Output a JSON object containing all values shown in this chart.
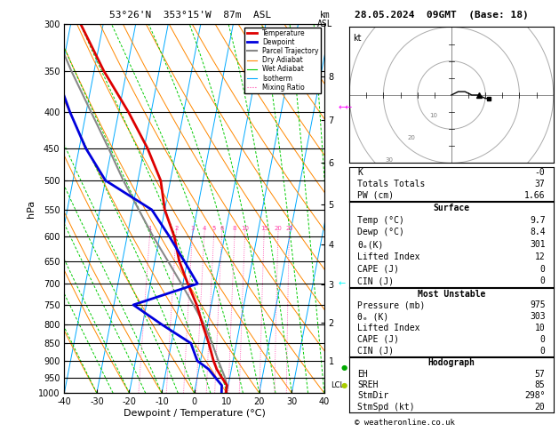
{
  "title_left": "53°26'N  353°15'W  87m  ASL",
  "title_right": "28.05.2024  09GMT  (Base: 18)",
  "xlabel": "Dewpoint / Temperature (°C)",
  "ylabel_left": "hPa",
  "pmin": 300,
  "pmax": 1000,
  "temp_min": -40,
  "temp_max": 40,
  "skew_factor": 22,
  "pressure_levels": [
    300,
    350,
    400,
    450,
    500,
    550,
    600,
    650,
    700,
    750,
    800,
    850,
    900,
    950,
    1000
  ],
  "isotherm_color": "#00aaff",
  "dry_adiabat_color": "#ff8800",
  "wet_adiabat_color": "#00cc00",
  "mixing_ratio_color": "#ff44aa",
  "mixing_ratio_values": [
    1,
    2,
    3,
    4,
    5,
    6,
    8,
    10,
    15,
    20,
    25
  ],
  "legend_entries": [
    {
      "label": "Temperature",
      "color": "#dd0000",
      "style": "-",
      "lw": 2.0
    },
    {
      "label": "Dewpoint",
      "color": "#0000dd",
      "style": "-",
      "lw": 2.0
    },
    {
      "label": "Parcel Trajectory",
      "color": "#888888",
      "style": "-",
      "lw": 1.5
    },
    {
      "label": "Dry Adiabat",
      "color": "#ff8800",
      "style": "-",
      "lw": 0.8
    },
    {
      "label": "Wet Adiabat",
      "color": "#00cc00",
      "style": "-",
      "lw": 0.8
    },
    {
      "label": "Isotherm",
      "color": "#00aaff",
      "style": "-",
      "lw": 0.8
    },
    {
      "label": "Mixing Ratio",
      "color": "#ff44aa",
      "style": ":",
      "lw": 0.8
    }
  ],
  "temp_profile_pressure": [
    1000,
    975,
    950,
    925,
    900,
    850,
    800,
    750,
    700,
    650,
    600,
    550,
    500,
    450,
    400,
    350,
    300
  ],
  "temp_profile_temp": [
    9.7,
    9.6,
    7.5,
    5.5,
    4.0,
    1.5,
    -1.5,
    -4.5,
    -8.5,
    -12.5,
    -15.5,
    -20.0,
    -23.0,
    -29.0,
    -37.0,
    -47.0,
    -57.0
  ],
  "dewp_profile_pressure": [
    1000,
    975,
    950,
    925,
    900,
    850,
    800,
    750,
    700,
    650,
    600,
    550,
    500,
    450,
    400,
    350,
    300
  ],
  "dewp_profile_dewp": [
    8.4,
    8.0,
    5.5,
    3.0,
    -1.0,
    -4.0,
    -14.0,
    -24.0,
    -5.5,
    -11.0,
    -17.0,
    -24.0,
    -40.0,
    -48.0,
    -55.0,
    -62.0,
    -70.0
  ],
  "parcel_pressure": [
    975,
    950,
    900,
    850,
    800,
    750,
    700,
    650,
    600,
    550,
    500,
    450,
    400,
    350,
    300
  ],
  "parcel_temp": [
    9.6,
    8.5,
    5.5,
    2.5,
    -1.0,
    -5.5,
    -10.5,
    -16.0,
    -22.0,
    -28.0,
    -34.5,
    -41.0,
    -48.5,
    -57.0,
    -66.0
  ],
  "km_labels": [
    1,
    2,
    3,
    4,
    5,
    6,
    7,
    8
  ],
  "km_pressures": [
    899,
    795,
    701,
    616,
    540,
    472,
    411,
    356
  ],
  "lcl_pressure": 975,
  "background_color": "#ffffff"
}
